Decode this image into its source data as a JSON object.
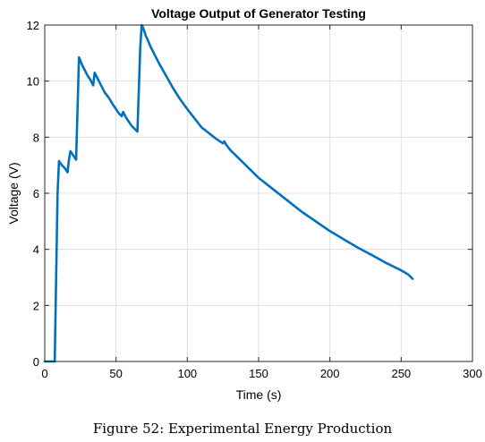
{
  "chart_data": {
    "type": "line",
    "title": "Voltage Output of Generator Testing",
    "xlabel": "Time (s)",
    "ylabel": "Voltage (V)",
    "xlim": [
      0,
      300
    ],
    "ylim": [
      0,
      12
    ],
    "xticks": [
      0,
      50,
      100,
      150,
      200,
      250,
      300
    ],
    "yticks": [
      0,
      2,
      4,
      6,
      8,
      10,
      12
    ],
    "grid": true,
    "line_color": "#0072BD",
    "series": [
      {
        "x": [
          0,
          3,
          7,
          8,
          9,
          10,
          12,
          14,
          16,
          17,
          18,
          20,
          22,
          23,
          24,
          26,
          28,
          30,
          32,
          34,
          35,
          36,
          38,
          40,
          42,
          45,
          48,
          50,
          52,
          54,
          55,
          57,
          59,
          61,
          63,
          65,
          67,
          68,
          69,
          70,
          71,
          72,
          74,
          76,
          78,
          80,
          85,
          90,
          95,
          100,
          110,
          120,
          125,
          126,
          127,
          130,
          140,
          150,
          160,
          170,
          180,
          190,
          200,
          210,
          220,
          230,
          240,
          250,
          255,
          258
        ],
        "y": [
          0.0,
          0.0,
          0.0,
          3.0,
          6.0,
          7.15,
          7.0,
          6.9,
          6.75,
          7.2,
          7.5,
          7.35,
          7.2,
          9.0,
          10.85,
          10.6,
          10.4,
          10.2,
          10.05,
          9.85,
          10.3,
          10.2,
          10.0,
          9.8,
          9.6,
          9.4,
          9.15,
          9.0,
          8.85,
          8.75,
          8.9,
          8.7,
          8.55,
          8.4,
          8.3,
          8.2,
          11.2,
          12.0,
          11.9,
          11.75,
          11.6,
          11.5,
          11.25,
          11.05,
          10.85,
          10.65,
          10.2,
          9.75,
          9.35,
          9.0,
          8.35,
          7.95,
          7.78,
          7.85,
          7.75,
          7.55,
          7.05,
          6.55,
          6.15,
          5.75,
          5.35,
          5.0,
          4.65,
          4.35,
          4.05,
          3.78,
          3.5,
          3.25,
          3.1,
          2.95
        ]
      }
    ]
  },
  "caption": "Figure 52: Experimental Energy Production"
}
